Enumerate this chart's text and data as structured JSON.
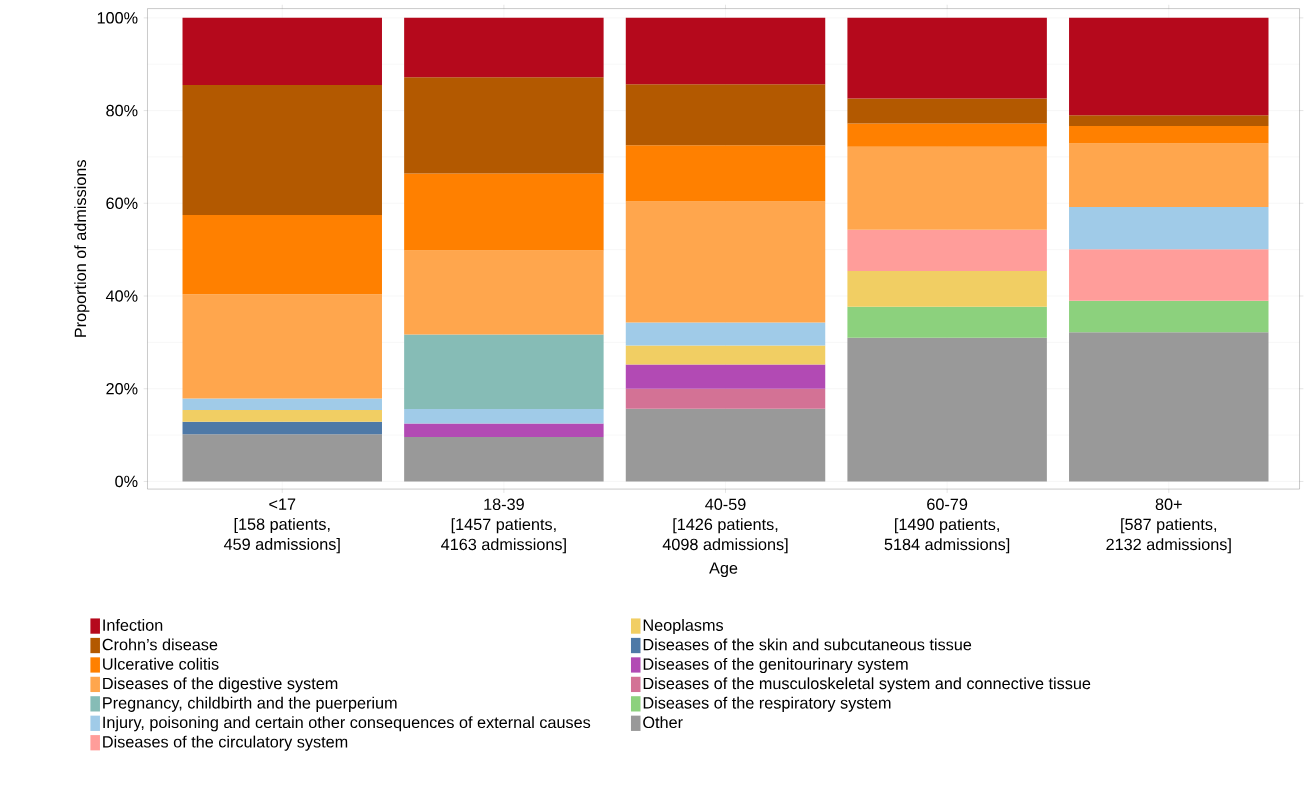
{
  "chart_data": {
    "type": "bar",
    "stacked": true,
    "xlabel": "Age",
    "ylabel": "Proportion of admissions",
    "categories": [
      "<17\n[158 patients,\n459 admissions]",
      "18-39\n[1457 patients,\n4163 admissions]",
      "40-59\n[1426 patients,\n4098 admissions]",
      "60-79\n[1490 patients,\n5184 admissions]",
      "80+\n[587 patients,\n2132 admissions]"
    ],
    "ylim": [
      0,
      100
    ],
    "yticks": [
      {
        "value": 0,
        "label": "0%"
      },
      {
        "value": 20,
        "label": "20%"
      },
      {
        "value": 40,
        "label": "40%"
      },
      {
        "value": 60,
        "label": "60%"
      },
      {
        "value": 80,
        "label": "80%"
      },
      {
        "value": 100,
        "label": "100%"
      }
    ],
    "grid": true,
    "legend": "bottom",
    "series": [
      {
        "name": "Other",
        "color": "#999999",
        "values": [
          10.2,
          9.6,
          15.7,
          31.0,
          32.2
        ]
      },
      {
        "name": "Diseases of the respiratory system",
        "color": "#8cd17d",
        "values": [
          null,
          null,
          null,
          6.7,
          6.8
        ]
      },
      {
        "name": "Diseases of the musculoskeletal system and connective tissue",
        "color": "#d37295",
        "values": [
          null,
          null,
          4.3,
          null,
          null
        ]
      },
      {
        "name": "Diseases of the genitourinary system",
        "color": "#b24ab4",
        "values": [
          null,
          2.9,
          5.2,
          null,
          null
        ]
      },
      {
        "name": "Diseases of the skin and subcutaneous tissue",
        "color": "#4e79a7",
        "values": [
          2.7,
          null,
          null,
          null,
          null
        ]
      },
      {
        "name": "Neoplasms",
        "color": "#f1ce63",
        "values": [
          2.5,
          null,
          4.1,
          7.7,
          null
        ]
      },
      {
        "name": "Diseases of the circulatory system",
        "color": "#ff9d9a",
        "values": [
          null,
          null,
          null,
          8.9,
          11.1
        ]
      },
      {
        "name": "Injury, poisoning and certain other consequences of external causes",
        "color": "#a0cbe8",
        "values": [
          2.5,
          3.1,
          5.0,
          null,
          9.1
        ]
      },
      {
        "name": "Pregnancy, childbirth and the puerperium",
        "color": "#86bcb6",
        "values": [
          null,
          16.1,
          null,
          null,
          null
        ]
      },
      {
        "name": "Diseases of the digestive system",
        "color": "#ffa64d",
        "values": [
          22.5,
          18.1,
          26.1,
          17.9,
          13.7
        ]
      },
      {
        "name": "Ulcerative colitis",
        "color": "#ff8000",
        "values": [
          17.1,
          16.6,
          12.1,
          5.0,
          3.8
        ]
      },
      {
        "name": "Crohn’s disease",
        "color": "#b35900",
        "values": [
          28.0,
          20.8,
          13.2,
          5.4,
          2.3
        ]
      },
      {
        "name": "Infection",
        "color": "#b5091c",
        "values": [
          14.5,
          12.8,
          14.3,
          17.4,
          21.0
        ]
      }
    ]
  }
}
